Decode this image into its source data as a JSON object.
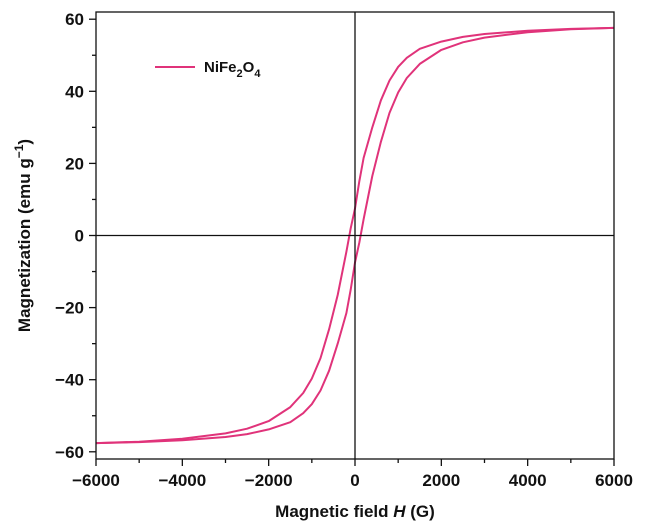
{
  "chart_data": {
    "type": "line",
    "xlabel_prefix": "Magnetic field ",
    "xlabel_var": "H",
    "xlabel_suffix": " (G)",
    "ylabel_main": "Magnetization (emu g",
    "ylabel_sup": "−1",
    "ylabel_end": ")",
    "xlim": [
      -6000,
      6000
    ],
    "ylim": [
      -62,
      62
    ],
    "xticks": [
      -6000,
      -4000,
      -2000,
      0,
      2000,
      4000,
      6000
    ],
    "xtick_labels": [
      "−6000",
      "−4000",
      "−2000",
      "0",
      "2000",
      "4000",
      "6000"
    ],
    "yticks": [
      -60,
      -40,
      -20,
      0,
      20,
      40,
      60
    ],
    "ytick_labels": [
      "−60",
      "−40",
      "−20",
      "0",
      "20",
      "40",
      "60"
    ],
    "legend": {
      "base": "NiFe",
      "sub1": "2",
      "mid": "O",
      "sub2": "4",
      "placement": "top-left"
    },
    "series": [
      {
        "name": "NiFe2O4",
        "color": "#e0337a",
        "branches": [
          {
            "x": [
              -6000,
              -5000,
              -4000,
              -3000,
              -2500,
              -2000,
              -1500,
              -1200,
              -1000,
              -800,
              -600,
              -400,
              -200,
              -100,
              0,
              100,
              200,
              400,
              600,
              800,
              1000,
              1200,
              1500,
              2000,
              2500,
              3000,
              4000,
              5000,
              6000
            ],
            "y": [
              -57.6,
              -57.2,
              -56.4,
              -54.9,
              -53.6,
              -51.5,
              -47.6,
              -43.7,
              -39.7,
              -34.0,
              -26.0,
              -16.5,
              -4.5,
              2.0,
              7.5,
              15.0,
              21.5,
              30.0,
              37.5,
              43.0,
              46.8,
              49.3,
              51.8,
              53.8,
              55.1,
              55.9,
              56.8,
              57.3,
              57.6
            ]
          },
          {
            "x": [
              6000,
              5000,
              4000,
              3000,
              2500,
              2000,
              1500,
              1200,
              1000,
              800,
              600,
              400,
              200,
              100,
              0,
              -100,
              -200,
              -400,
              -600,
              -800,
              -1000,
              -1200,
              -1500,
              -2000,
              -2500,
              -3000,
              -4000,
              -5000,
              -6000
            ],
            "y": [
              57.6,
              57.2,
              56.4,
              54.9,
              53.6,
              51.5,
              47.6,
              43.7,
              39.7,
              34.0,
              26.0,
              16.5,
              4.5,
              -2.0,
              -7.5,
              -15.0,
              -21.5,
              -30.0,
              -37.5,
              -43.0,
              -46.8,
              -49.3,
              -51.8,
              -53.8,
              -55.1,
              -55.9,
              -56.8,
              -57.3,
              -57.6
            ]
          }
        ]
      }
    ],
    "grid": false,
    "zero_lines": true
  }
}
